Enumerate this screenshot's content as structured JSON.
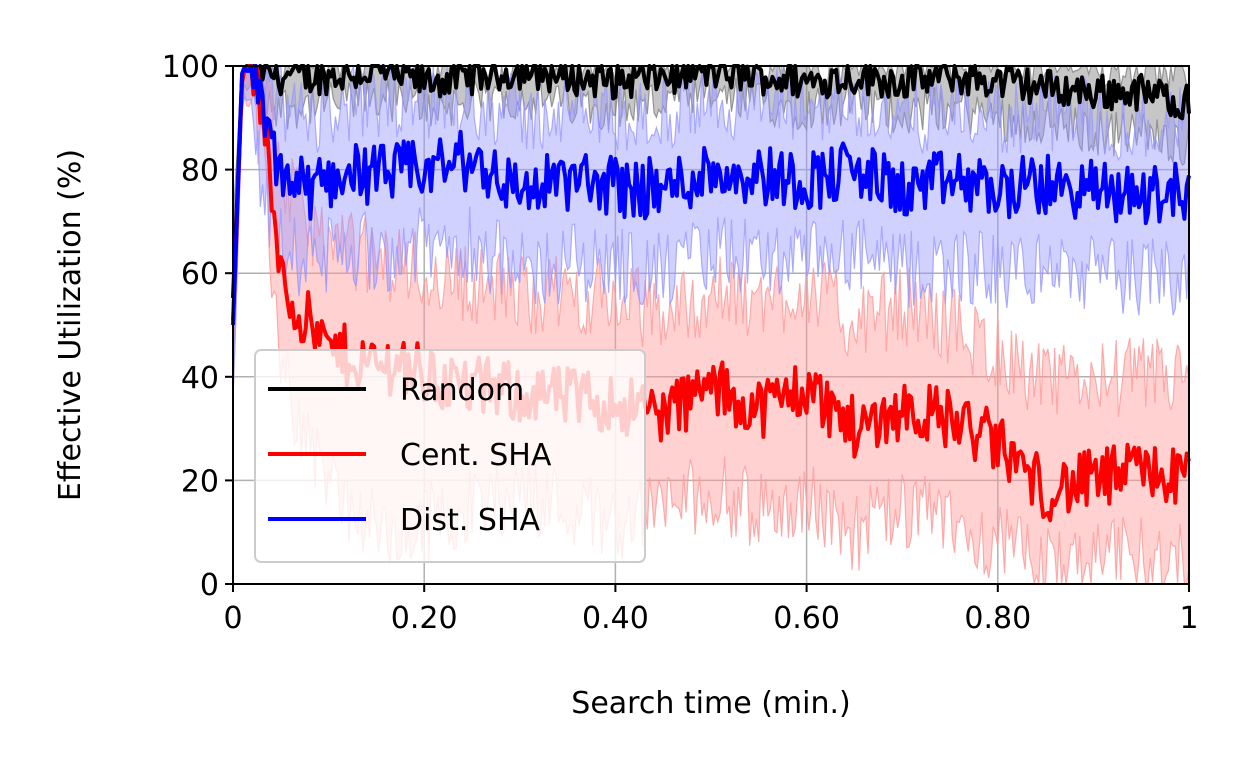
{
  "chart_data": {
    "type": "line",
    "title": "",
    "xlabel": "Search time (min.)",
    "ylabel": "Effective Utilization (%)",
    "xlim": [
      0,
      1
    ],
    "ylim": [
      0,
      100
    ],
    "xticks": [
      {
        "value": 0,
        "label": "0"
      },
      {
        "value": 0.2,
        "label": "0.20"
      },
      {
        "value": 0.4,
        "label": "0.40"
      },
      {
        "value": 0.6,
        "label": "0.60"
      },
      {
        "value": 0.8,
        "label": "0.80"
      },
      {
        "value": 1,
        "label": "1"
      }
    ],
    "yticks": [
      {
        "value": 0,
        "label": "0"
      },
      {
        "value": 20,
        "label": "20"
      },
      {
        "value": 40,
        "label": "40"
      },
      {
        "value": 60,
        "label": "60"
      },
      {
        "value": 80,
        "label": "80"
      },
      {
        "value": 100,
        "label": "100"
      }
    ],
    "grid": true,
    "legend_position": "lower-left",
    "series": [
      {
        "name": "Random",
        "color": "#000000",
        "band_color": "#808080",
        "x": [
          0,
          0.01,
          0.02,
          0.05,
          0.1,
          0.15,
          0.2,
          0.25,
          0.3,
          0.35,
          0.4,
          0.45,
          0.5,
          0.55,
          0.6,
          0.65,
          0.7,
          0.75,
          0.8,
          0.85,
          0.9,
          0.95,
          1.0
        ],
        "y": [
          55,
          100,
          100,
          98,
          98,
          99,
          97,
          98,
          99,
          98,
          97,
          98,
          99,
          98,
          97,
          98,
          97,
          98,
          97,
          96,
          95,
          95,
          93
        ],
        "band_lower": [
          40,
          96,
          96,
          92,
          93,
          94,
          92,
          93,
          94,
          93,
          92,
          93,
          94,
          93,
          92,
          93,
          91,
          92,
          90,
          89,
          87,
          87,
          85
        ],
        "band_upper": [
          70,
          100,
          100,
          100,
          100,
          100,
          100,
          100,
          100,
          100,
          100,
          100,
          100,
          100,
          100,
          100,
          100,
          100,
          100,
          100,
          100,
          100,
          100
        ]
      },
      {
        "name": "Cent. SHA",
        "color": "#ff0000",
        "band_color": "#ff9999",
        "x": [
          0,
          0.01,
          0.02,
          0.03,
          0.04,
          0.05,
          0.06,
          0.08,
          0.1,
          0.12,
          0.15,
          0.18,
          0.2,
          0.25,
          0.3,
          0.35,
          0.4,
          0.45,
          0.5,
          0.55,
          0.6,
          0.65,
          0.7,
          0.75,
          0.8,
          0.85,
          0.9,
          0.95,
          1.0
        ],
        "y": [
          50,
          100,
          100,
          92,
          75,
          62,
          55,
          50,
          45,
          44,
          42,
          43,
          40,
          38,
          37,
          36,
          35,
          33,
          38,
          34,
          38,
          30,
          34,
          32,
          27,
          18,
          20,
          22,
          20
        ],
        "band_lower": [
          35,
          95,
          92,
          82,
          62,
          45,
          35,
          28,
          20,
          15,
          10,
          8,
          12,
          15,
          18,
          15,
          12,
          15,
          18,
          14,
          16,
          10,
          14,
          12,
          8,
          3,
          4,
          6,
          5
        ],
        "band_upper": [
          65,
          100,
          100,
          100,
          90,
          80,
          75,
          70,
          65,
          65,
          62,
          62,
          60,
          58,
          56,
          56,
          55,
          52,
          56,
          54,
          58,
          50,
          54,
          50,
          45,
          38,
          40,
          40,
          40
        ]
      },
      {
        "name": "Dist. SHA",
        "color": "#0000ff",
        "band_color": "#9999ff",
        "x": [
          0,
          0.01,
          0.02,
          0.03,
          0.04,
          0.05,
          0.06,
          0.08,
          0.1,
          0.12,
          0.15,
          0.2,
          0.25,
          0.3,
          0.35,
          0.4,
          0.45,
          0.5,
          0.55,
          0.6,
          0.65,
          0.7,
          0.75,
          0.8,
          0.85,
          0.9,
          0.95,
          1.0
        ],
        "y": [
          50,
          100,
          100,
          90,
          84,
          80,
          78,
          76,
          78,
          80,
          79,
          80,
          82,
          76,
          78,
          77,
          76,
          80,
          79,
          78,
          80,
          76,
          78,
          76,
          77,
          76,
          75,
          76
        ],
        "band_lower": [
          35,
          95,
          92,
          78,
          70,
          66,
          64,
          62,
          63,
          65,
          64,
          65,
          66,
          60,
          62,
          62,
          60,
          64,
          63,
          62,
          64,
          60,
          62,
          60,
          61,
          60,
          59,
          60
        ],
        "band_upper": [
          65,
          100,
          100,
          100,
          96,
          93,
          91,
          90,
          92,
          93,
          92,
          93,
          94,
          90,
          92,
          91,
          90,
          94,
          93,
          92,
          94,
          90,
          92,
          90,
          91,
          90,
          89,
          90
        ]
      }
    ]
  }
}
